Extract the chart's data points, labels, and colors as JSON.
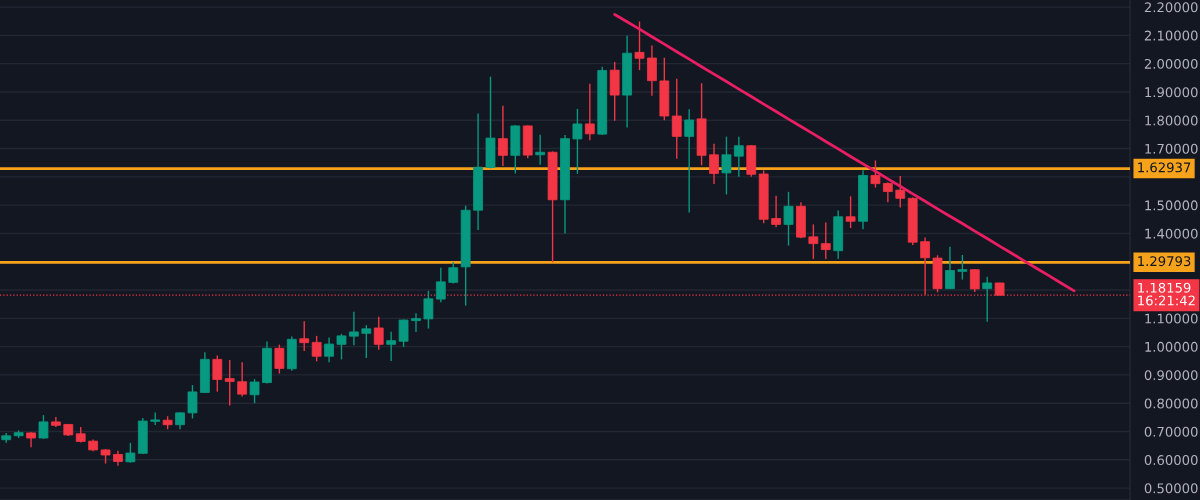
{
  "chart_data": {
    "type": "candlestick",
    "categories": [
      null,
      null,
      null,
      null,
      null,
      null,
      null,
      null,
      null,
      null,
      null,
      null,
      null,
      null,
      null,
      null,
      null,
      null,
      null,
      null,
      null,
      null,
      null,
      null,
      null,
      null,
      null,
      null,
      null,
      null,
      null,
      null,
      null,
      null,
      null,
      null,
      null,
      null,
      null,
      null,
      null,
      null,
      null,
      null,
      null,
      null,
      null,
      null,
      null,
      null,
      null,
      null,
      null,
      null,
      null,
      null,
      null,
      null,
      null,
      null,
      null,
      null,
      null,
      null,
      null,
      null,
      null,
      null,
      null,
      null,
      null,
      null,
      null,
      null,
      null,
      null,
      null,
      null,
      null,
      null,
      null,
      null,
      null,
      null,
      null,
      null,
      null,
      null,
      null,
      null,
      null
    ],
    "ohlc": [
      [
        0.671,
        0.695,
        0.66,
        0.685
      ],
      [
        0.685,
        0.704,
        0.677,
        0.696
      ],
      [
        0.695,
        0.697,
        0.644,
        0.677
      ],
      [
        0.677,
        0.758,
        0.674,
        0.734
      ],
      [
        0.734,
        0.751,
        0.716,
        0.722
      ],
      [
        0.725,
        0.727,
        0.684,
        0.688
      ],
      [
        0.692,
        0.716,
        0.661,
        0.665
      ],
      [
        0.666,
        0.672,
        0.63,
        0.635
      ],
      [
        0.635,
        0.638,
        0.587,
        0.617
      ],
      [
        0.619,
        0.632,
        0.579,
        0.594
      ],
      [
        0.593,
        0.66,
        0.59,
        0.624
      ],
      [
        0.623,
        0.748,
        0.621,
        0.737
      ],
      [
        0.736,
        0.767,
        0.723,
        0.741
      ],
      [
        0.74,
        0.754,
        0.708,
        0.724
      ],
      [
        0.724,
        0.768,
        0.708,
        0.766
      ],
      [
        0.766,
        0.864,
        0.746,
        0.84
      ],
      [
        0.838,
        0.98,
        0.836,
        0.955
      ],
      [
        0.955,
        0.969,
        0.841,
        0.884
      ],
      [
        0.887,
        0.953,
        0.792,
        0.877
      ],
      [
        0.876,
        0.945,
        0.824,
        0.832
      ],
      [
        0.83,
        0.885,
        0.8,
        0.875
      ],
      [
        0.873,
        1.018,
        0.87,
        0.994
      ],
      [
        0.994,
        1.007,
        0.905,
        0.923
      ],
      [
        0.922,
        1.036,
        0.915,
        1.026
      ],
      [
        1.028,
        1.09,
        0.985,
        1.014
      ],
      [
        1.015,
        1.038,
        0.948,
        0.966
      ],
      [
        0.966,
        1.032,
        0.945,
        1.009
      ],
      [
        1.008,
        1.045,
        0.955,
        1.038
      ],
      [
        1.037,
        1.123,
        1.005,
        1.052
      ],
      [
        1.047,
        1.076,
        0.96,
        1.063
      ],
      [
        1.066,
        1.106,
        0.989,
        1.008
      ],
      [
        1.008,
        1.053,
        0.949,
        1.021
      ],
      [
        1.019,
        1.096,
        0.999,
        1.094
      ],
      [
        1.092,
        1.118,
        1.052,
        1.099
      ],
      [
        1.098,
        1.197,
        1.064,
        1.169
      ],
      [
        1.168,
        1.279,
        1.157,
        1.229
      ],
      [
        1.227,
        1.299,
        1.223,
        1.279
      ],
      [
        1.282,
        1.498,
        1.145,
        1.482
      ],
      [
        1.482,
        1.824,
        1.412,
        1.634
      ],
      [
        1.633,
        1.954,
        1.63,
        1.737
      ],
      [
        1.735,
        1.851,
        1.638,
        1.676
      ],
      [
        1.676,
        1.783,
        1.612,
        1.78
      ],
      [
        1.78,
        1.782,
        1.666,
        1.677
      ],
      [
        1.678,
        1.749,
        1.643,
        1.687
      ],
      [
        1.687,
        1.69,
        1.298,
        1.519
      ],
      [
        1.519,
        1.748,
        1.4,
        1.735
      ],
      [
        1.734,
        1.84,
        1.611,
        1.787
      ],
      [
        1.787,
        1.929,
        1.729,
        1.752
      ],
      [
        1.751,
        1.989,
        1.748,
        1.976
      ],
      [
        1.977,
        2.006,
        1.798,
        1.889
      ],
      [
        1.889,
        2.099,
        1.774,
        2.037
      ],
      [
        2.04,
        2.149,
        1.977,
        2.019
      ],
      [
        2.02,
        2.064,
        1.887,
        1.94
      ],
      [
        1.939,
        2.021,
        1.8,
        1.815
      ],
      [
        1.815,
        1.947,
        1.664,
        1.743
      ],
      [
        1.743,
        1.839,
        1.474,
        1.801
      ],
      [
        1.805,
        1.931,
        1.641,
        1.676
      ],
      [
        1.678,
        1.717,
        1.575,
        1.612
      ],
      [
        1.614,
        1.742,
        1.538,
        1.678
      ],
      [
        1.673,
        1.742,
        1.6,
        1.71
      ],
      [
        1.71,
        1.712,
        1.6,
        1.609
      ],
      [
        1.61,
        1.623,
        1.436,
        1.45
      ],
      [
        1.453,
        1.533,
        1.422,
        1.432
      ],
      [
        1.432,
        1.547,
        1.357,
        1.496
      ],
      [
        1.496,
        1.51,
        1.383,
        1.387
      ],
      [
        1.388,
        1.432,
        1.31,
        1.364
      ],
      [
        1.364,
        1.439,
        1.31,
        1.343
      ],
      [
        1.339,
        1.481,
        1.31,
        1.459
      ],
      [
        1.459,
        1.531,
        1.419,
        1.443
      ],
      [
        1.443,
        1.623,
        1.415,
        1.605
      ],
      [
        1.605,
        1.658,
        1.562,
        1.576
      ],
      [
        1.577,
        1.58,
        1.51,
        1.548
      ],
      [
        1.553,
        1.603,
        1.492,
        1.524
      ],
      [
        1.524,
        1.527,
        1.359,
        1.369
      ],
      [
        1.371,
        1.386,
        1.183,
        1.314
      ],
      [
        1.313,
        1.323,
        1.192,
        1.205
      ],
      [
        1.205,
        1.353,
        1.204,
        1.269
      ],
      [
        1.266,
        1.324,
        1.237,
        1.272
      ],
      [
        1.272,
        1.274,
        1.193,
        1.204
      ],
      [
        1.205,
        1.247,
        1.088,
        1.225
      ],
      [
        1.225,
        1.226,
        1.18159,
        1.18159
      ],
      null,
      null,
      null,
      null,
      null,
      null,
      null,
      null,
      null,
      null
    ],
    "colors": [
      "#089981",
      "#089981",
      "#f23645",
      "#089981",
      "#f23645",
      "#f23645",
      "#f23645",
      "#f23645",
      "#f23645",
      "#f23645",
      "#089981",
      "#089981",
      "#089981",
      "#f23645",
      "#089981",
      "#089981",
      "#089981",
      "#f23645",
      "#f23645",
      "#f23645",
      "#089981",
      "#089981",
      "#f23645",
      "#089981",
      "#f23645",
      "#f23645",
      "#089981",
      "#089981",
      "#089981",
      "#089981",
      "#f23645",
      "#089981",
      "#089981",
      "#089981",
      "#089981",
      "#089981",
      "#089981",
      "#089981",
      "#089981",
      "#089981",
      "#f23645",
      "#089981",
      "#f23645",
      "#089981",
      "#f23645",
      "#089981",
      "#089981",
      "#f23645",
      "#089981",
      "#f23645",
      "#089981",
      "#f23645",
      "#f23645",
      "#f23645",
      "#f23645",
      "#089981",
      "#f23645",
      "#f23645",
      "#089981",
      "#089981",
      "#f23645",
      "#f23645",
      "#f23645",
      "#089981",
      "#f23645",
      "#f23645",
      "#f23645",
      "#089981",
      "#f23645",
      "#089981",
      "#f23645",
      "#f23645",
      "#f23645",
      "#f23645",
      "#f23645",
      "#f23645",
      "#089981",
      "#089981",
      "#f23645",
      "#089981",
      "#f23645",
      null,
      null,
      null,
      null,
      null,
      null,
      null,
      null,
      null,
      null
    ],
    "series": [
      {
        "type": "line",
        "color": "#e91e63",
        "values": [
          null,
          null,
          null,
          null,
          null,
          null,
          null,
          null,
          null,
          null,
          null,
          null,
          null,
          null,
          null,
          null,
          null,
          null,
          null,
          null,
          null,
          null,
          null,
          null,
          null,
          null,
          null,
          null,
          null,
          null,
          null,
          null,
          null,
          null,
          null,
          null,
          null,
          null,
          null,
          null,
          null,
          null,
          null,
          null,
          null,
          null,
          null,
          null,
          null,
          2.174,
          2.148,
          2.122,
          2.095,
          2.069,
          2.042,
          2.016,
          1.989,
          1.963,
          1.937,
          1.91,
          1.884,
          1.857,
          1.831,
          1.804,
          1.778,
          1.752,
          1.725,
          1.699,
          1.672,
          1.646,
          1.62,
          1.593,
          1.567,
          1.54,
          1.514,
          1.487,
          1.461,
          1.435,
          1.408,
          1.382,
          1.355,
          1.329,
          1.302,
          1.276,
          1.25,
          1.223,
          1.197,
          null,
          null,
          null,
          null
        ]
      }
    ],
    "ref_lines": [
      {
        "axis": "y",
        "value": 1.62937,
        "label": "1.62937",
        "color": "#f7a21b",
        "line_style": "solid"
      },
      {
        "axis": "y",
        "value": 1.29793,
        "label": "1.29793",
        "color": "#f7a21b",
        "line_style": "solid"
      },
      {
        "axis": "y",
        "value": 1.18159,
        "label": "1.18159\n16:21:42",
        "color": "#f23645",
        "line_style": "dotted"
      }
    ],
    "ylim": [
      0.458,
      2.225
    ],
    "yticks": [
      {
        "value": 0.5,
        "label": "0.50000"
      },
      {
        "value": 0.6,
        "label": "0.60000"
      },
      {
        "value": 0.7,
        "label": "0.70000"
      },
      {
        "value": 0.8,
        "label": "0.80000"
      },
      {
        "value": 0.9,
        "label": "0.90000"
      },
      {
        "value": 1.0,
        "label": "1.00000"
      },
      {
        "value": 1.1,
        "label": "1.10000"
      },
      {
        "value": 1.2,
        "label": null
      },
      {
        "value": 1.3,
        "label": null
      },
      {
        "value": 1.4,
        "label": "1.40000"
      },
      {
        "value": 1.5,
        "label": "1.50000"
      },
      {
        "value": 1.6,
        "label": null
      },
      {
        "value": 1.7,
        "label": "1.70000"
      },
      {
        "value": 1.8,
        "label": "1.80000"
      },
      {
        "value": 1.9,
        "label": "1.90000"
      },
      {
        "value": 2.0,
        "label": "2.00000"
      },
      {
        "value": 2.1,
        "label": "2.10000"
      },
      {
        "value": 2.2,
        "label": "2.20000"
      }
    ],
    "tick_labels": "y",
    "grid": "y"
  }
}
